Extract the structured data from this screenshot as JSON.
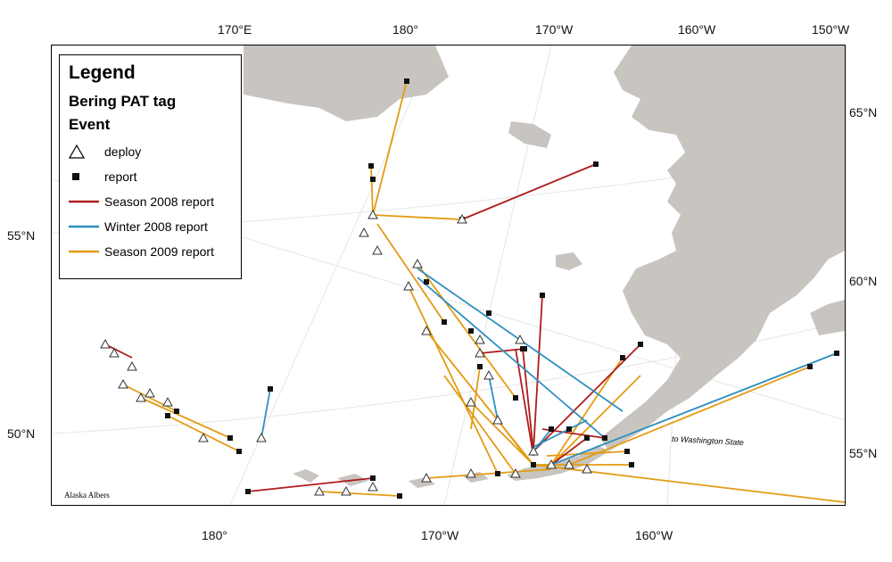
{
  "map": {
    "top_longitude_labels": [
      "170°E",
      "180°",
      "170°W",
      "160°W",
      "150°W"
    ],
    "bottom_longitude_labels": [
      "180°",
      "170°W",
      "160°W"
    ],
    "left_latitude_labels": [
      "55°N",
      "50°N"
    ],
    "right_latitude_labels": [
      "65°N",
      "60°N",
      "55°N"
    ],
    "projection_label": "Alaska Albers",
    "annotation": "to Washington State"
  },
  "legend": {
    "title": "Legend",
    "subtitle": "Bering PAT tag",
    "group": "Event",
    "items": [
      {
        "label": "deploy",
        "symbol": "triangle-outline",
        "color": "#000000"
      },
      {
        "label": "report",
        "symbol": "square-filled",
        "color": "#111111"
      },
      {
        "label": "Season 2008 report",
        "symbol": "line",
        "color": "#b01c1c"
      },
      {
        "label": "Winter 2008 report",
        "symbol": "line",
        "color": "#2d8fc0"
      },
      {
        "label": "Season 2009 report",
        "symbol": "line",
        "color": "#e39b12"
      }
    ]
  },
  "colors": {
    "land": "#c8c5c1",
    "water": "#ffffff",
    "season2008": "#b01c1c",
    "winter2008": "#2d8fc0",
    "season2009": "#e39b12"
  }
}
